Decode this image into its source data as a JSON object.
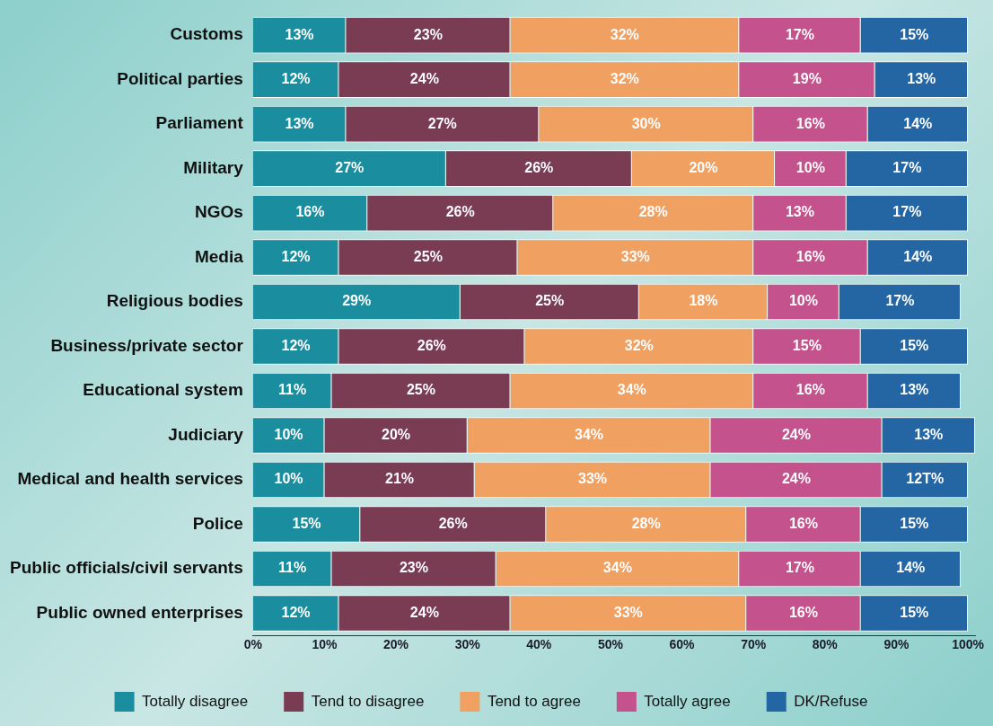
{
  "chart_data": {
    "type": "bar",
    "orientation": "horizontal",
    "stacked": true,
    "legend": "bottom",
    "grid": false,
    "categories": [
      "Customs",
      "Political parties",
      "Parliament",
      "Military",
      "NGOs",
      "Media",
      "Religious bodies",
      "Business/private sector",
      "Educational system",
      "Judiciary",
      "Medical and health services",
      "Police",
      "Public officials/civil servants",
      "Public owned enterprises"
    ],
    "xlim": [
      0,
      101
    ],
    "xticks": [
      {
        "value": 0,
        "label": "0%"
      },
      {
        "value": 10,
        "label": "10%"
      },
      {
        "value": 20,
        "label": "20%"
      },
      {
        "value": 30,
        "label": "30%"
      },
      {
        "value": 40,
        "label": "40%"
      },
      {
        "value": 50,
        "label": "50%"
      },
      {
        "value": 60,
        "label": "60%"
      },
      {
        "value": 70,
        "label": "70%"
      },
      {
        "value": 80,
        "label": "80%"
      },
      {
        "value": 90,
        "label": "90%"
      },
      {
        "value": 100,
        "label": "100%"
      }
    ],
    "series": [
      {
        "name": "Totally disagree",
        "color": "#1a8e9e",
        "values": [
          13,
          12,
          13,
          27,
          16,
          12,
          29,
          12,
          11,
          10,
          10,
          15,
          11,
          12
        ],
        "value_labels": [
          "13%",
          "12%",
          "13%",
          "27%",
          "16%",
          "12%",
          "29%",
          "12%",
          "11%",
          "10%",
          "10%",
          "15%",
          "11%",
          "12%"
        ]
      },
      {
        "name": "Tend to disagree",
        "color": "#7a3c52",
        "values": [
          23,
          24,
          27,
          26,
          26,
          25,
          25,
          26,
          25,
          20,
          21,
          26,
          23,
          24
        ],
        "value_labels": [
          "23%",
          "24%",
          "27%",
          "26%",
          "26%",
          "25%",
          "25%",
          "26%",
          "25%",
          "20%",
          "21%",
          "26%",
          "23%",
          "24%"
        ]
      },
      {
        "name": "Tend to agree",
        "color": "#f0a060",
        "values": [
          32,
          32,
          30,
          20,
          28,
          33,
          18,
          32,
          34,
          34,
          33,
          28,
          34,
          33
        ],
        "value_labels": [
          "32%",
          "32%",
          "30%",
          "20%",
          "28%",
          "33%",
          "18%",
          "32%",
          "34%",
          "34%",
          "33%",
          "28%",
          "34%",
          "33%"
        ]
      },
      {
        "name": "Totally agree",
        "color": "#c4528c",
        "values": [
          17,
          19,
          16,
          10,
          13,
          16,
          10,
          15,
          16,
          24,
          24,
          16,
          17,
          16
        ],
        "value_labels": [
          "17%",
          "19%",
          "16%",
          "10%",
          "13%",
          "16%",
          "10%",
          "15%",
          "16%",
          "24%",
          "24%",
          "16%",
          "17%",
          "16%"
        ]
      },
      {
        "name": "DK/Refuse",
        "color": "#2466a4",
        "values": [
          15,
          13,
          14,
          17,
          17,
          14,
          17,
          15,
          13,
          13,
          12,
          15,
          14,
          15
        ],
        "value_labels": [
          "15%",
          "13%",
          "14%",
          "17%",
          "17%",
          "14%",
          "17%",
          "15%",
          "13%",
          "13%",
          "12T%",
          "15%",
          "14%",
          "15%"
        ]
      }
    ]
  }
}
